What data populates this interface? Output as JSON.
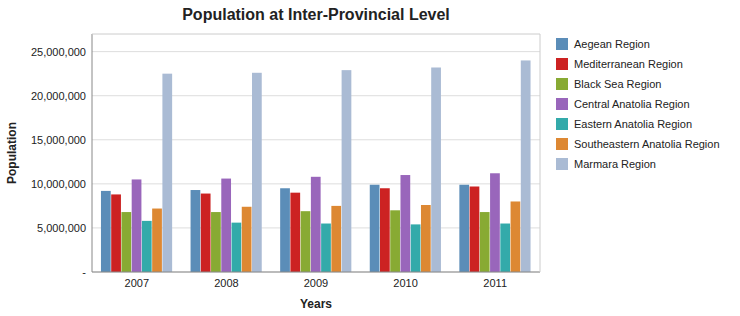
{
  "chart_data": {
    "type": "bar",
    "title": "Population at Inter-Provincial Level",
    "xlabel": "Years",
    "ylabel": "Population",
    "categories": [
      "2007",
      "2008",
      "2009",
      "2010",
      "2011"
    ],
    "series": [
      {
        "name": "Aegean Region",
        "color": "#5B8DB8",
        "values": [
          9200000,
          9300000,
          9500000,
          9900000,
          9900000
        ]
      },
      {
        "name": "Mediterranean Region",
        "color": "#CC2222",
        "values": [
          8800000,
          8900000,
          9000000,
          9500000,
          9700000
        ]
      },
      {
        "name": "Black Sea Region",
        "color": "#88AA33",
        "values": [
          6800000,
          6800000,
          6900000,
          7000000,
          6800000
        ]
      },
      {
        "name": "Central Anatolia Region",
        "color": "#9966BB",
        "values": [
          10500000,
          10600000,
          10800000,
          11000000,
          11200000
        ]
      },
      {
        "name": "Eastern Anatolia Region",
        "color": "#33AAAA",
        "values": [
          5800000,
          5600000,
          5500000,
          5400000,
          5500000
        ]
      },
      {
        "name": "Southeastern Anatolia Region",
        "color": "#DD8833",
        "values": [
          7200000,
          7400000,
          7500000,
          7600000,
          8000000
        ]
      },
      {
        "name": "Marmara Region",
        "color": "#AABBD4",
        "values": [
          22500000,
          22600000,
          22900000,
          23200000,
          24000000
        ]
      }
    ],
    "ylim": [
      0,
      27000000
    ],
    "yticks": [
      {
        "value": 0,
        "label": "-"
      },
      {
        "value": 5000000,
        "label": "5,000,000"
      },
      {
        "value": 10000000,
        "label": "10,000,000"
      },
      {
        "value": 15000000,
        "label": "15,000,000"
      },
      {
        "value": 20000000,
        "label": "20,000,000"
      },
      {
        "value": 25000000,
        "label": "25,000,000"
      }
    ],
    "grid": true,
    "legend": "right"
  }
}
